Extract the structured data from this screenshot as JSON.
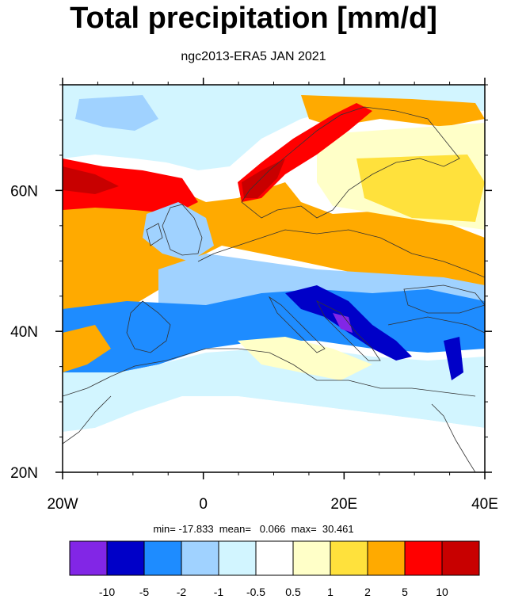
{
  "title": "Total precipitation [mm/d]",
  "subtitle": "ngc2013-ERA5 JAN 2021",
  "stats": {
    "text": "min= -17.833  mean=   0.066  max=  30.461",
    "min": -17.833,
    "mean": 0.066,
    "max": 30.461
  },
  "map": {
    "lon_range": [
      -20,
      40
    ],
    "lat_range": [
      20,
      75
    ],
    "lon_ticks": [
      {
        "value": -20,
        "label": "20W"
      },
      {
        "value": 0,
        "label": "0"
      },
      {
        "value": 20,
        "label": "20E"
      },
      {
        "value": 40,
        "label": "40E"
      }
    ],
    "lat_ticks": [
      {
        "value": 20,
        "label": "20N"
      },
      {
        "value": 40,
        "label": "40N"
      },
      {
        "value": 60,
        "label": "60N"
      }
    ]
  },
  "colorbar": {
    "colors": [
      "#8226e6",
      "#0000c8",
      "#1e8cff",
      "#a0d2ff",
      "#d2f5ff",
      "#ffffff",
      "#ffffc8",
      "#ffe13c",
      "#ffaa00",
      "#ff0000",
      "#c80000"
    ],
    "labels": [
      "-10",
      "-5",
      "-2",
      "-1",
      "-0.5",
      "0.5",
      "1",
      "2",
      "5",
      "10"
    ]
  }
}
